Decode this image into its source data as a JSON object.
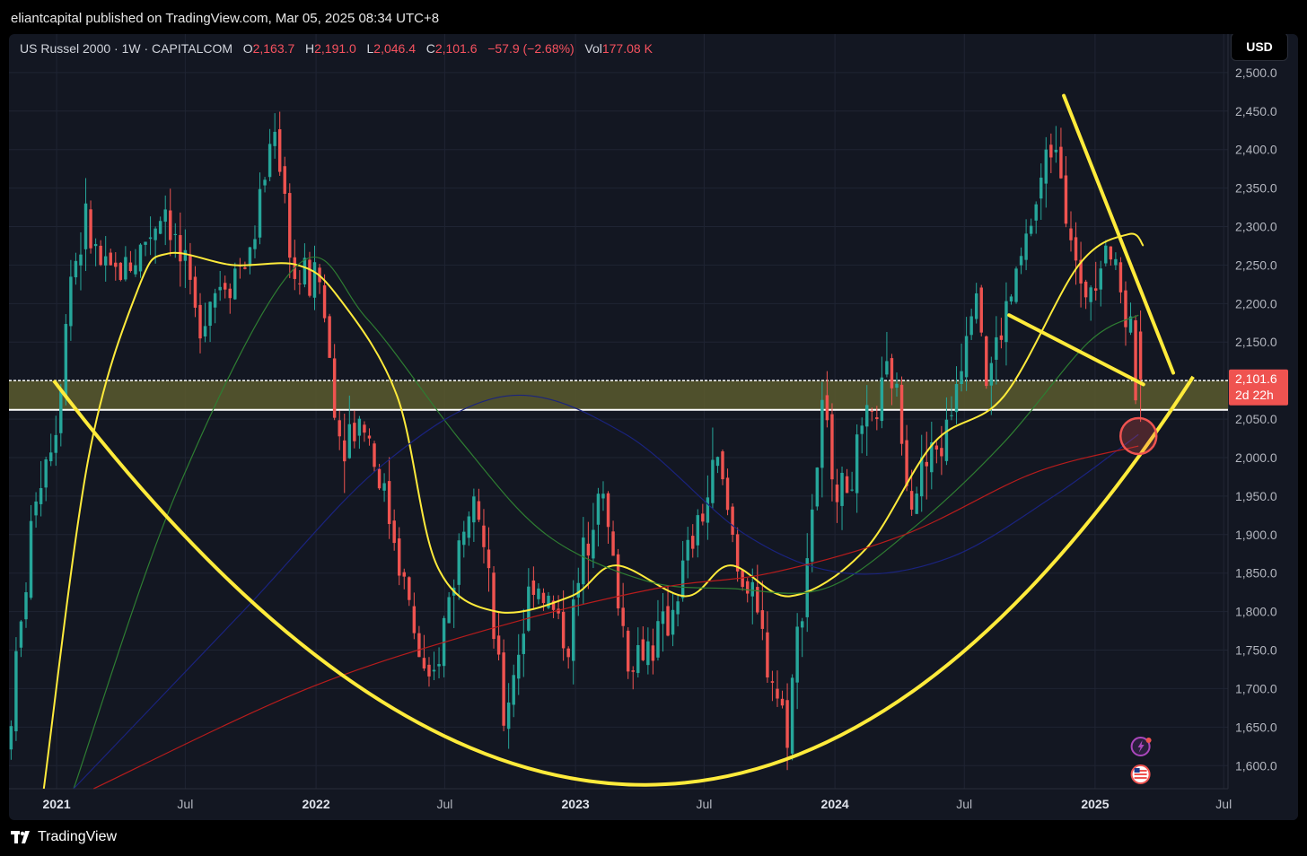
{
  "publisher_line": "eliantcapital published on TradingView.com, Mar 05, 2025 08:34 UTC+8",
  "legend": {
    "symbol": "US Russel 2000 · 1W · CAPITALCOM",
    "o_label": "O",
    "o_value": "2,163.7",
    "h_label": "H",
    "h_value": "2,191.0",
    "l_label": "L",
    "l_value": "2,046.4",
    "c_label": "C",
    "c_value": "2,101.6",
    "change": "−57.9 (−2.68%)",
    "vol_label": "Vol",
    "vol_value": "177.08 K"
  },
  "currency_button": "USD",
  "price_tag": {
    "price": "2,101.6",
    "countdown": "2d 22h"
  },
  "brand": "TradingView",
  "icons": [
    "lightning-icon",
    "us-flag-icon",
    "tradingview-logo-icon"
  ],
  "colors": {
    "background": "#131722",
    "up": "#26a69a",
    "down": "#ef5350",
    "drawing": "#ffeb3b",
    "ma_fast": "#ffeb3b",
    "ma_mid": "#2e7d32",
    "ma_slow_red": "#b71c1c",
    "ma_slow_blue": "#1a237e",
    "zone_fill": "#5b5a2e"
  },
  "chart_data": {
    "type": "candlestick",
    "instrument": "US Russel 2000",
    "timeframe": "1W",
    "x_tick_labels": [
      "2021",
      "Jul",
      "2022",
      "Jul",
      "2023",
      "Jul",
      "2024",
      "Jul",
      "2025",
      "Jul"
    ],
    "y_tick_labels": [
      "1,600.0",
      "1,650.0",
      "1,700.0",
      "1,750.0",
      "1,800.0",
      "1,850.0",
      "1,900.0",
      "1,950.0",
      "2,000.0",
      "2,050.0",
      "2,100.0",
      "2,150.0",
      "2,200.0",
      "2,250.0",
      "2,300.0",
      "2,350.0",
      "2,400.0",
      "2,450.0",
      "2,500.0"
    ],
    "ylim": [
      1570,
      2515
    ],
    "xlim": [
      "2020-10-26",
      "2025-07-07"
    ],
    "price_path": [
      [
        "2020-10-26",
        1620
      ],
      [
        "2020-11-16",
        1780
      ],
      [
        "2020-12-07",
        1960
      ],
      [
        "2021-01-04",
        2050
      ],
      [
        "2021-01-25",
        2240
      ],
      [
        "2021-02-15",
        2300
      ],
      [
        "2021-03-15",
        2230
      ],
      [
        "2021-04-26",
        2260
      ],
      [
        "2021-06-07",
        2330
      ],
      [
        "2021-07-19",
        2180
      ],
      [
        "2021-08-23",
        2230
      ],
      [
        "2021-10-04",
        2260
      ],
      [
        "2021-11-08",
        2440
      ],
      [
        "2021-12-06",
        2230
      ],
      [
        "2022-01-10",
        2230
      ],
      [
        "2022-02-07",
        2030
      ],
      [
        "2022-03-14",
        2050
      ],
      [
        "2022-04-25",
        1900
      ],
      [
        "2022-06-13",
        1680
      ],
      [
        "2022-08-15",
        1990
      ],
      [
        "2022-09-26",
        1660
      ],
      [
        "2022-11-07",
        1850
      ],
      [
        "2022-12-26",
        1760
      ],
      [
        "2023-02-06",
        1980
      ],
      [
        "2023-03-20",
        1740
      ],
      [
        "2023-05-08",
        1770
      ],
      [
        "2023-07-24",
        1990
      ],
      [
        "2023-08-21",
        1870
      ],
      [
        "2023-10-30",
        1650
      ],
      [
        "2023-12-18",
        2050
      ],
      [
        "2024-01-15",
        1950
      ],
      [
        "2024-03-25",
        2110
      ],
      [
        "2024-04-22",
        1960
      ],
      [
        "2024-06-10",
        2030
      ],
      [
        "2024-07-22",
        2250
      ],
      [
        "2024-08-05",
        2100
      ],
      [
        "2024-09-16",
        2230
      ],
      [
        "2024-11-11",
        2430
      ],
      [
        "2024-12-16",
        2200
      ],
      [
        "2025-01-20",
        2290
      ],
      [
        "2025-02-24",
        2170
      ],
      [
        "2025-03-03",
        2101.6
      ]
    ],
    "last_candle": {
      "open": 2163.7,
      "high": 2191.0,
      "low": 2046.4,
      "close": 2101.6
    },
    "support_zone": [
      2062,
      2100
    ],
    "annotations": [
      {
        "type": "cup-arc",
        "points": [
          [
            "2020-12-28",
            2100
          ],
          [
            "2023-04-10",
            1575
          ],
          [
            "2025-05-19",
            2105
          ]
        ]
      },
      {
        "type": "trendline",
        "points": [
          [
            "2024-11-18",
            2470
          ],
          [
            "2025-04-21",
            2110
          ]
        ]
      },
      {
        "type": "trendline",
        "points": [
          [
            "2024-09-02",
            2185
          ],
          [
            "2025-03-10",
            2095
          ]
        ]
      },
      {
        "type": "circle",
        "center": [
          "2025-03-03",
          2028
        ]
      }
    ],
    "moving_averages": [
      {
        "color": "yellow",
        "points": [
          [
            "2020-12-14",
            1570
          ],
          [
            "2021-02-15",
            2000
          ],
          [
            "2021-04-26",
            2220
          ],
          [
            "2021-06-07",
            2265
          ],
          [
            "2021-09-06",
            2250
          ],
          [
            "2021-12-06",
            2250
          ],
          [
            "2022-01-31",
            2210
          ],
          [
            "2022-04-25",
            2080
          ],
          [
            "2022-06-20",
            1860
          ],
          [
            "2022-09-12",
            1800
          ],
          [
            "2022-12-26",
            1820
          ],
          [
            "2023-02-27",
            1860
          ],
          [
            "2023-06-05",
            1820
          ],
          [
            "2023-08-07",
            1860
          ],
          [
            "2023-10-30",
            1820
          ],
          [
            "2024-02-12",
            1880
          ],
          [
            "2024-05-20",
            2020
          ],
          [
            "2024-08-26",
            2080
          ],
          [
            "2024-12-09",
            2250
          ],
          [
            "2025-02-17",
            2290
          ],
          [
            "2025-03-10",
            2275
          ]
        ]
      },
      {
        "color": "green",
        "points": [
          [
            "2021-01-25",
            1570
          ],
          [
            "2021-06-21",
            1960
          ],
          [
            "2021-12-06",
            2250
          ],
          [
            "2022-03-14",
            2180
          ],
          [
            "2022-07-25",
            2020
          ],
          [
            "2022-11-21",
            1900
          ],
          [
            "2023-04-10",
            1840
          ],
          [
            "2023-08-07",
            1830
          ],
          [
            "2023-12-18",
            1830
          ],
          [
            "2024-04-22",
            1910
          ],
          [
            "2024-08-26",
            2020
          ],
          [
            "2024-12-23",
            2150
          ],
          [
            "2025-03-03",
            2185
          ]
        ]
      },
      {
        "color": "blue",
        "points": [
          [
            "2021-01-25",
            1570
          ],
          [
            "2021-09-20",
            1800
          ],
          [
            "2022-04-04",
            1990
          ],
          [
            "2022-09-26",
            2080
          ],
          [
            "2023-03-13",
            2030
          ],
          [
            "2023-08-28",
            1900
          ],
          [
            "2024-01-15",
            1850
          ],
          [
            "2024-06-10",
            1870
          ],
          [
            "2024-11-04",
            1950
          ],
          [
            "2025-03-03",
            2030
          ]
        ]
      },
      {
        "color": "red",
        "points": [
          [
            "2021-02-22",
            1570
          ],
          [
            "2021-12-20",
            1700
          ],
          [
            "2022-09-12",
            1780
          ],
          [
            "2023-04-24",
            1830
          ],
          [
            "2023-10-02",
            1850
          ],
          [
            "2024-04-08",
            1900
          ],
          [
            "2024-10-07",
            1980
          ],
          [
            "2025-03-03",
            2015
          ]
        ]
      }
    ]
  }
}
